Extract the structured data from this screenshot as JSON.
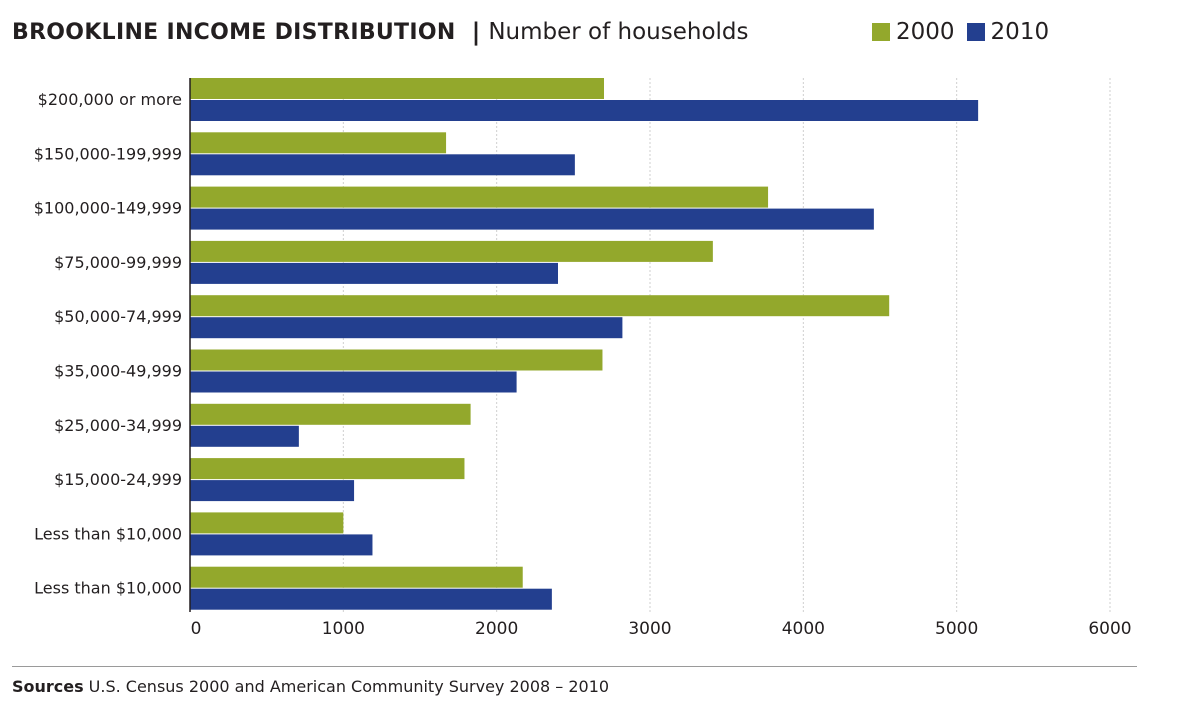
{
  "header": {
    "title": "BROOKLINE INCOME DISTRIBUTION",
    "separator": "|",
    "subtitle": "Number of households"
  },
  "colors": {
    "series_2000": "#93a82c",
    "series_2010": "#233f8f",
    "grid": "#cfcfcf",
    "axis": "#231f20"
  },
  "chart_data": {
    "type": "bar",
    "orientation": "horizontal",
    "title": "BROOKLINE INCOME DISTRIBUTION",
    "subtitle": "Number of households",
    "categories": [
      "$200,000 or more",
      "$150,000-199,999",
      "$100,000-149,999",
      "$75,000-99,999",
      "$50,000-74,999",
      "$35,000-49,999",
      "$25,000-34,999",
      "$15,000-24,999",
      "Less than $10,000",
      "Less than $10,000"
    ],
    "series": [
      {
        "name": "2000",
        "color": "#93a82c",
        "values": [
          2700,
          1670,
          3770,
          3410,
          4560,
          2690,
          1830,
          1790,
          1000,
          2170
        ]
      },
      {
        "name": "2010",
        "color": "#233f8f",
        "values": [
          5140,
          2510,
          4460,
          2400,
          2820,
          2130,
          710,
          1070,
          1190,
          2360
        ]
      }
    ],
    "xlim": [
      0,
      6000
    ],
    "xticks": [
      0,
      1000,
      2000,
      3000,
      4000,
      5000,
      6000
    ],
    "xlabel": "",
    "ylabel": "",
    "grid": true,
    "legend_position": "top-right"
  },
  "footer": {
    "label": "Sources",
    "text": "U.S. Census 2000 and American Community Survey 2008 – 2010"
  }
}
